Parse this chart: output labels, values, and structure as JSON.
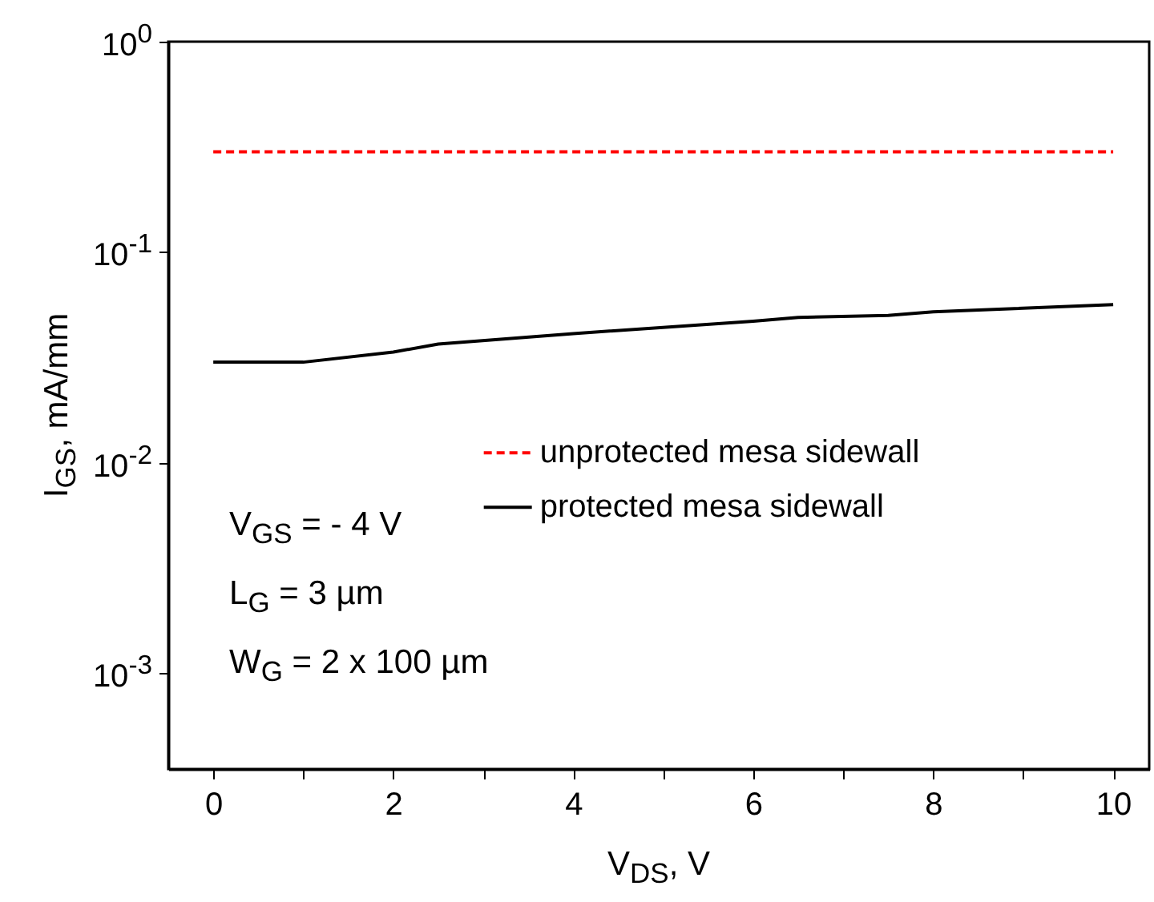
{
  "chart_data": {
    "type": "line",
    "xlabel": "V$_{DS}$, V",
    "ylabel": "I$_{GS}$, mA/mm",
    "log": "y",
    "xlim": [
      -0.5,
      10.4
    ],
    "ylim": [
      0.00035,
      1
    ],
    "xticks": [
      0,
      {
        "value": 1,
        "label": null
      },
      2,
      {
        "value": 3,
        "label": null
      },
      4,
      {
        "value": 5,
        "label": null
      },
      6,
      {
        "value": 7,
        "label": null
      },
      8,
      {
        "value": 9,
        "label": null
      },
      10
    ],
    "yticks": [
      {
        "value": 0.001,
        "label": "10$^{-3}$"
      },
      {
        "value": 0.01,
        "label": "10$^{-2}$"
      },
      {
        "value": 0.1,
        "label": "10$^{-1}$"
      },
      {
        "value": 1,
        "label": "10$^{0}$"
      }
    ],
    "grid": false,
    "legend": "right",
    "series": [
      {
        "name": "unprotected mesa sidewall",
        "color": "#ff0000",
        "line_style": "dashed",
        "x": [
          0,
          10
        ],
        "values": [
          0.3,
          0.3
        ]
      },
      {
        "name": "protected mesa sidewall",
        "color": "#000000",
        "line_style": "solid",
        "x": [
          0,
          1,
          2,
          2.5,
          4,
          6,
          6.5,
          7.5,
          8,
          10
        ],
        "values": [
          0.03,
          0.03,
          0.0335,
          0.0366,
          0.041,
          0.047,
          0.049,
          0.05,
          0.052,
          0.0563
        ]
      }
    ],
    "annotations": [
      "V$_{GS}$ = - 4 V",
      "L$_{G}$ = 3 µm",
      "W$_{G}$ = 2 x 100 µm"
    ]
  }
}
